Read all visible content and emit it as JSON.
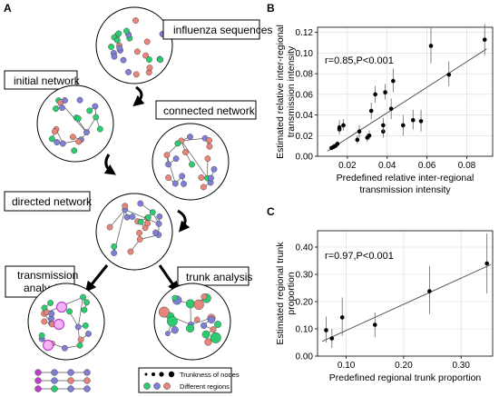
{
  "panels": {
    "a": "A",
    "b": "B",
    "c": "C"
  },
  "diagram": {
    "influenza_sequences": "influenza sequences",
    "initial_network": "initial network",
    "connected_network": "connected network",
    "directed_network": "directed network",
    "transmission_analysis_l1": "transmission",
    "transmission_analysis_l2": "analysis",
    "trunk_analysis": "trunk analysis",
    "legend_trunkness": "Trunkness of nodes",
    "legend_regions": "Different regions",
    "colors": {
      "green": "#2ecc71",
      "red": "#e8857a",
      "blue": "#7f7fd5",
      "purple": "#c03fd0",
      "edge": "#555555"
    }
  },
  "chart_data": [
    {
      "type": "scatter",
      "panel": "B",
      "annotation": "r=0.85,P<0.001",
      "xlabel": "Predefined relative inter-regional transmission intensity",
      "ylabel": "Estimated relative inter-regional transmission intensity",
      "xlim": [
        0.005,
        0.093
      ],
      "ylim": [
        0,
        0.125
      ],
      "xticks": [
        0.02,
        0.04,
        0.06,
        0.08
      ],
      "yticks": [
        0.0,
        0.04,
        0.08,
        0.12
      ],
      "xtick_labels": [
        "0.02",
        "0.04",
        "0.06",
        "0.08"
      ],
      "ytick_labels": [
        "0.00",
        "0.04",
        "0.08",
        "0.12"
      ],
      "ytick_labels_minor": [
        "0.02",
        "0.06",
        "0.10"
      ],
      "yticks_minor": [
        0.02,
        0.06,
        0.1
      ],
      "grid": true,
      "points": [
        {
          "x": 0.012,
          "y": 0.008,
          "lo": 0.006,
          "hi": 0.01
        },
        {
          "x": 0.013,
          "y": 0.009,
          "lo": 0.007,
          "hi": 0.012
        },
        {
          "x": 0.014,
          "y": 0.01,
          "lo": 0.008,
          "hi": 0.013
        },
        {
          "x": 0.015,
          "y": 0.012,
          "lo": 0.009,
          "hi": 0.015
        },
        {
          "x": 0.016,
          "y": 0.026,
          "lo": 0.021,
          "hi": 0.032
        },
        {
          "x": 0.016,
          "y": 0.028,
          "lo": 0.023,
          "hi": 0.035
        },
        {
          "x": 0.018,
          "y": 0.03,
          "lo": 0.025,
          "hi": 0.036
        },
        {
          "x": 0.025,
          "y": 0.016,
          "lo": 0.012,
          "hi": 0.02
        },
        {
          "x": 0.026,
          "y": 0.024,
          "lo": 0.018,
          "hi": 0.03
        },
        {
          "x": 0.03,
          "y": 0.018,
          "lo": 0.014,
          "hi": 0.022
        },
        {
          "x": 0.031,
          "y": 0.02,
          "lo": 0.016,
          "hi": 0.025
        },
        {
          "x": 0.032,
          "y": 0.044,
          "lo": 0.036,
          "hi": 0.052
        },
        {
          "x": 0.034,
          "y": 0.06,
          "lo": 0.052,
          "hi": 0.068
        },
        {
          "x": 0.038,
          "y": 0.024,
          "lo": 0.018,
          "hi": 0.03
        },
        {
          "x": 0.038,
          "y": 0.03,
          "lo": 0.024,
          "hi": 0.037
        },
        {
          "x": 0.039,
          "y": 0.062,
          "lo": 0.055,
          "hi": 0.07
        },
        {
          "x": 0.042,
          "y": 0.046,
          "lo": 0.036,
          "hi": 0.056
        },
        {
          "x": 0.043,
          "y": 0.073,
          "lo": 0.062,
          "hi": 0.085
        },
        {
          "x": 0.048,
          "y": 0.03,
          "lo": 0.02,
          "hi": 0.04
        },
        {
          "x": 0.053,
          "y": 0.035,
          "lo": 0.026,
          "hi": 0.045
        },
        {
          "x": 0.057,
          "y": 0.034,
          "lo": 0.024,
          "hi": 0.045
        },
        {
          "x": 0.062,
          "y": 0.107,
          "lo": 0.09,
          "hi": 0.125
        },
        {
          "x": 0.071,
          "y": 0.079,
          "lo": 0.068,
          "hi": 0.092
        },
        {
          "x": 0.089,
          "y": 0.113,
          "lo": 0.098,
          "hi": 0.128
        }
      ],
      "fit": {
        "x1": 0.01,
        "y1": 0.005,
        "x2": 0.09,
        "y2": 0.104
      }
    },
    {
      "type": "scatter",
      "panel": "C",
      "annotation": "r=0.97,P<0.001",
      "xlabel": "Predefined regional trunk proportion",
      "ylabel": "Estimated regional trunk proportion",
      "xlim": [
        0.05,
        0.355
      ],
      "ylim": [
        0,
        0.46
      ],
      "xticks": [
        0.1,
        0.2,
        0.3
      ],
      "yticks": [
        0.0,
        0.1,
        0.2,
        0.3,
        0.4
      ],
      "xtick_labels": [
        "0.10",
        "0.20",
        "0.30"
      ],
      "ytick_labels": [
        "0.00",
        "0.10",
        "0.20",
        "0.30",
        "0.40"
      ],
      "grid": true,
      "points": [
        {
          "x": 0.065,
          "y": 0.095,
          "lo": 0.05,
          "hi": 0.145
        },
        {
          "x": 0.075,
          "y": 0.065,
          "lo": 0.03,
          "hi": 0.1
        },
        {
          "x": 0.093,
          "y": 0.142,
          "lo": 0.075,
          "hi": 0.215
        },
        {
          "x": 0.15,
          "y": 0.115,
          "lo": 0.07,
          "hi": 0.16
        },
        {
          "x": 0.245,
          "y": 0.238,
          "lo": 0.155,
          "hi": 0.33
        },
        {
          "x": 0.345,
          "y": 0.34,
          "lo": 0.23,
          "hi": 0.45
        }
      ],
      "fit": {
        "x1": 0.058,
        "y1": 0.054,
        "x2": 0.352,
        "y2": 0.336
      }
    }
  ]
}
